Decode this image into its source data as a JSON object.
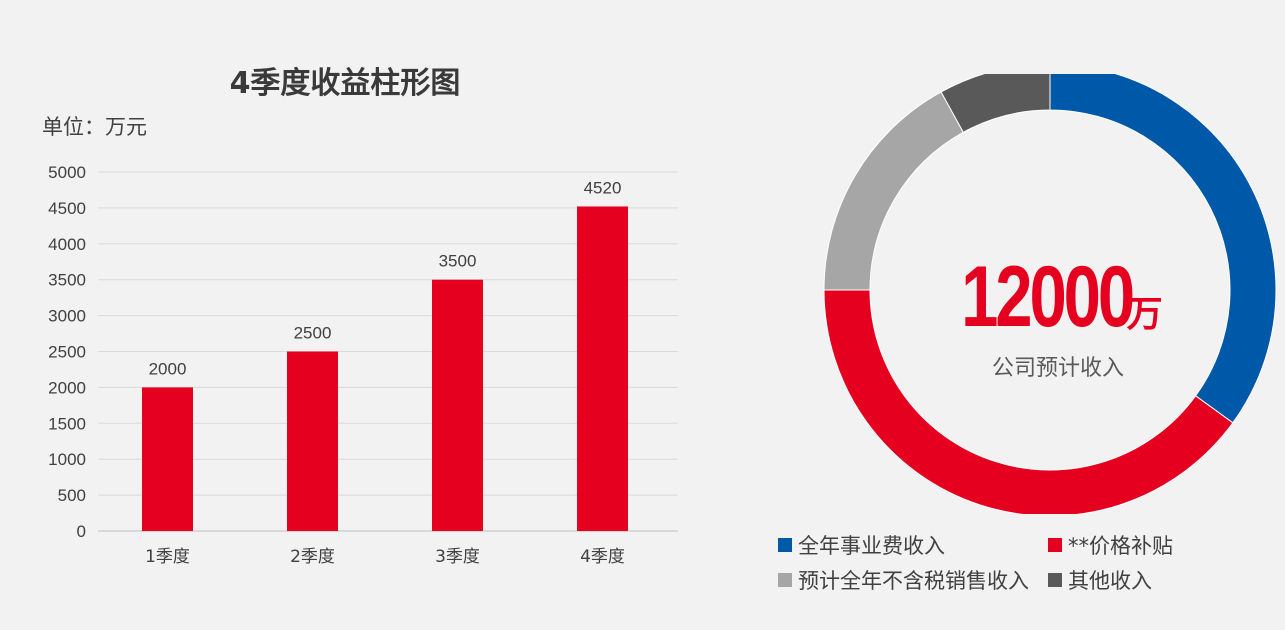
{
  "bar_chart": {
    "title": "4季度收益柱形图",
    "unit": "单位：万元"
  },
  "donut": {
    "center_value": "12000",
    "center_unit": "万",
    "center_label": "公司预计收入"
  },
  "legend": [
    {
      "label": "全年事业费收入",
      "color": "#0058a8"
    },
    {
      "label": "**价格补贴",
      "color": "#e60020"
    },
    {
      "label": "预计全年不含税销售收入",
      "color": "#a6a6a6"
    },
    {
      "label": "其他收入",
      "color": "#595959"
    }
  ],
  "chart_data": [
    {
      "type": "bar",
      "title": "4季度收益柱形图",
      "ylabel": "单位：万元",
      "categories": [
        "1季度",
        "2季度",
        "3季度",
        "4季度"
      ],
      "values": [
        2000,
        2500,
        3500,
        4520
      ],
      "ylim": [
        0,
        5000
      ],
      "yticks": [
        0,
        500,
        1000,
        1500,
        2000,
        2500,
        3000,
        3500,
        4000,
        4500,
        5000
      ],
      "color": "#e60020",
      "grid": true
    },
    {
      "type": "pie",
      "title": "",
      "center_text": "12000万",
      "categories": [
        "全年事业费收入",
        "**价格补贴",
        "预计全年不含税销售收入",
        "其他收入"
      ],
      "values": [
        35,
        40,
        17,
        8
      ],
      "colors": [
        "#0058a8",
        "#e60020",
        "#a6a6a6",
        "#595959"
      ]
    }
  ]
}
